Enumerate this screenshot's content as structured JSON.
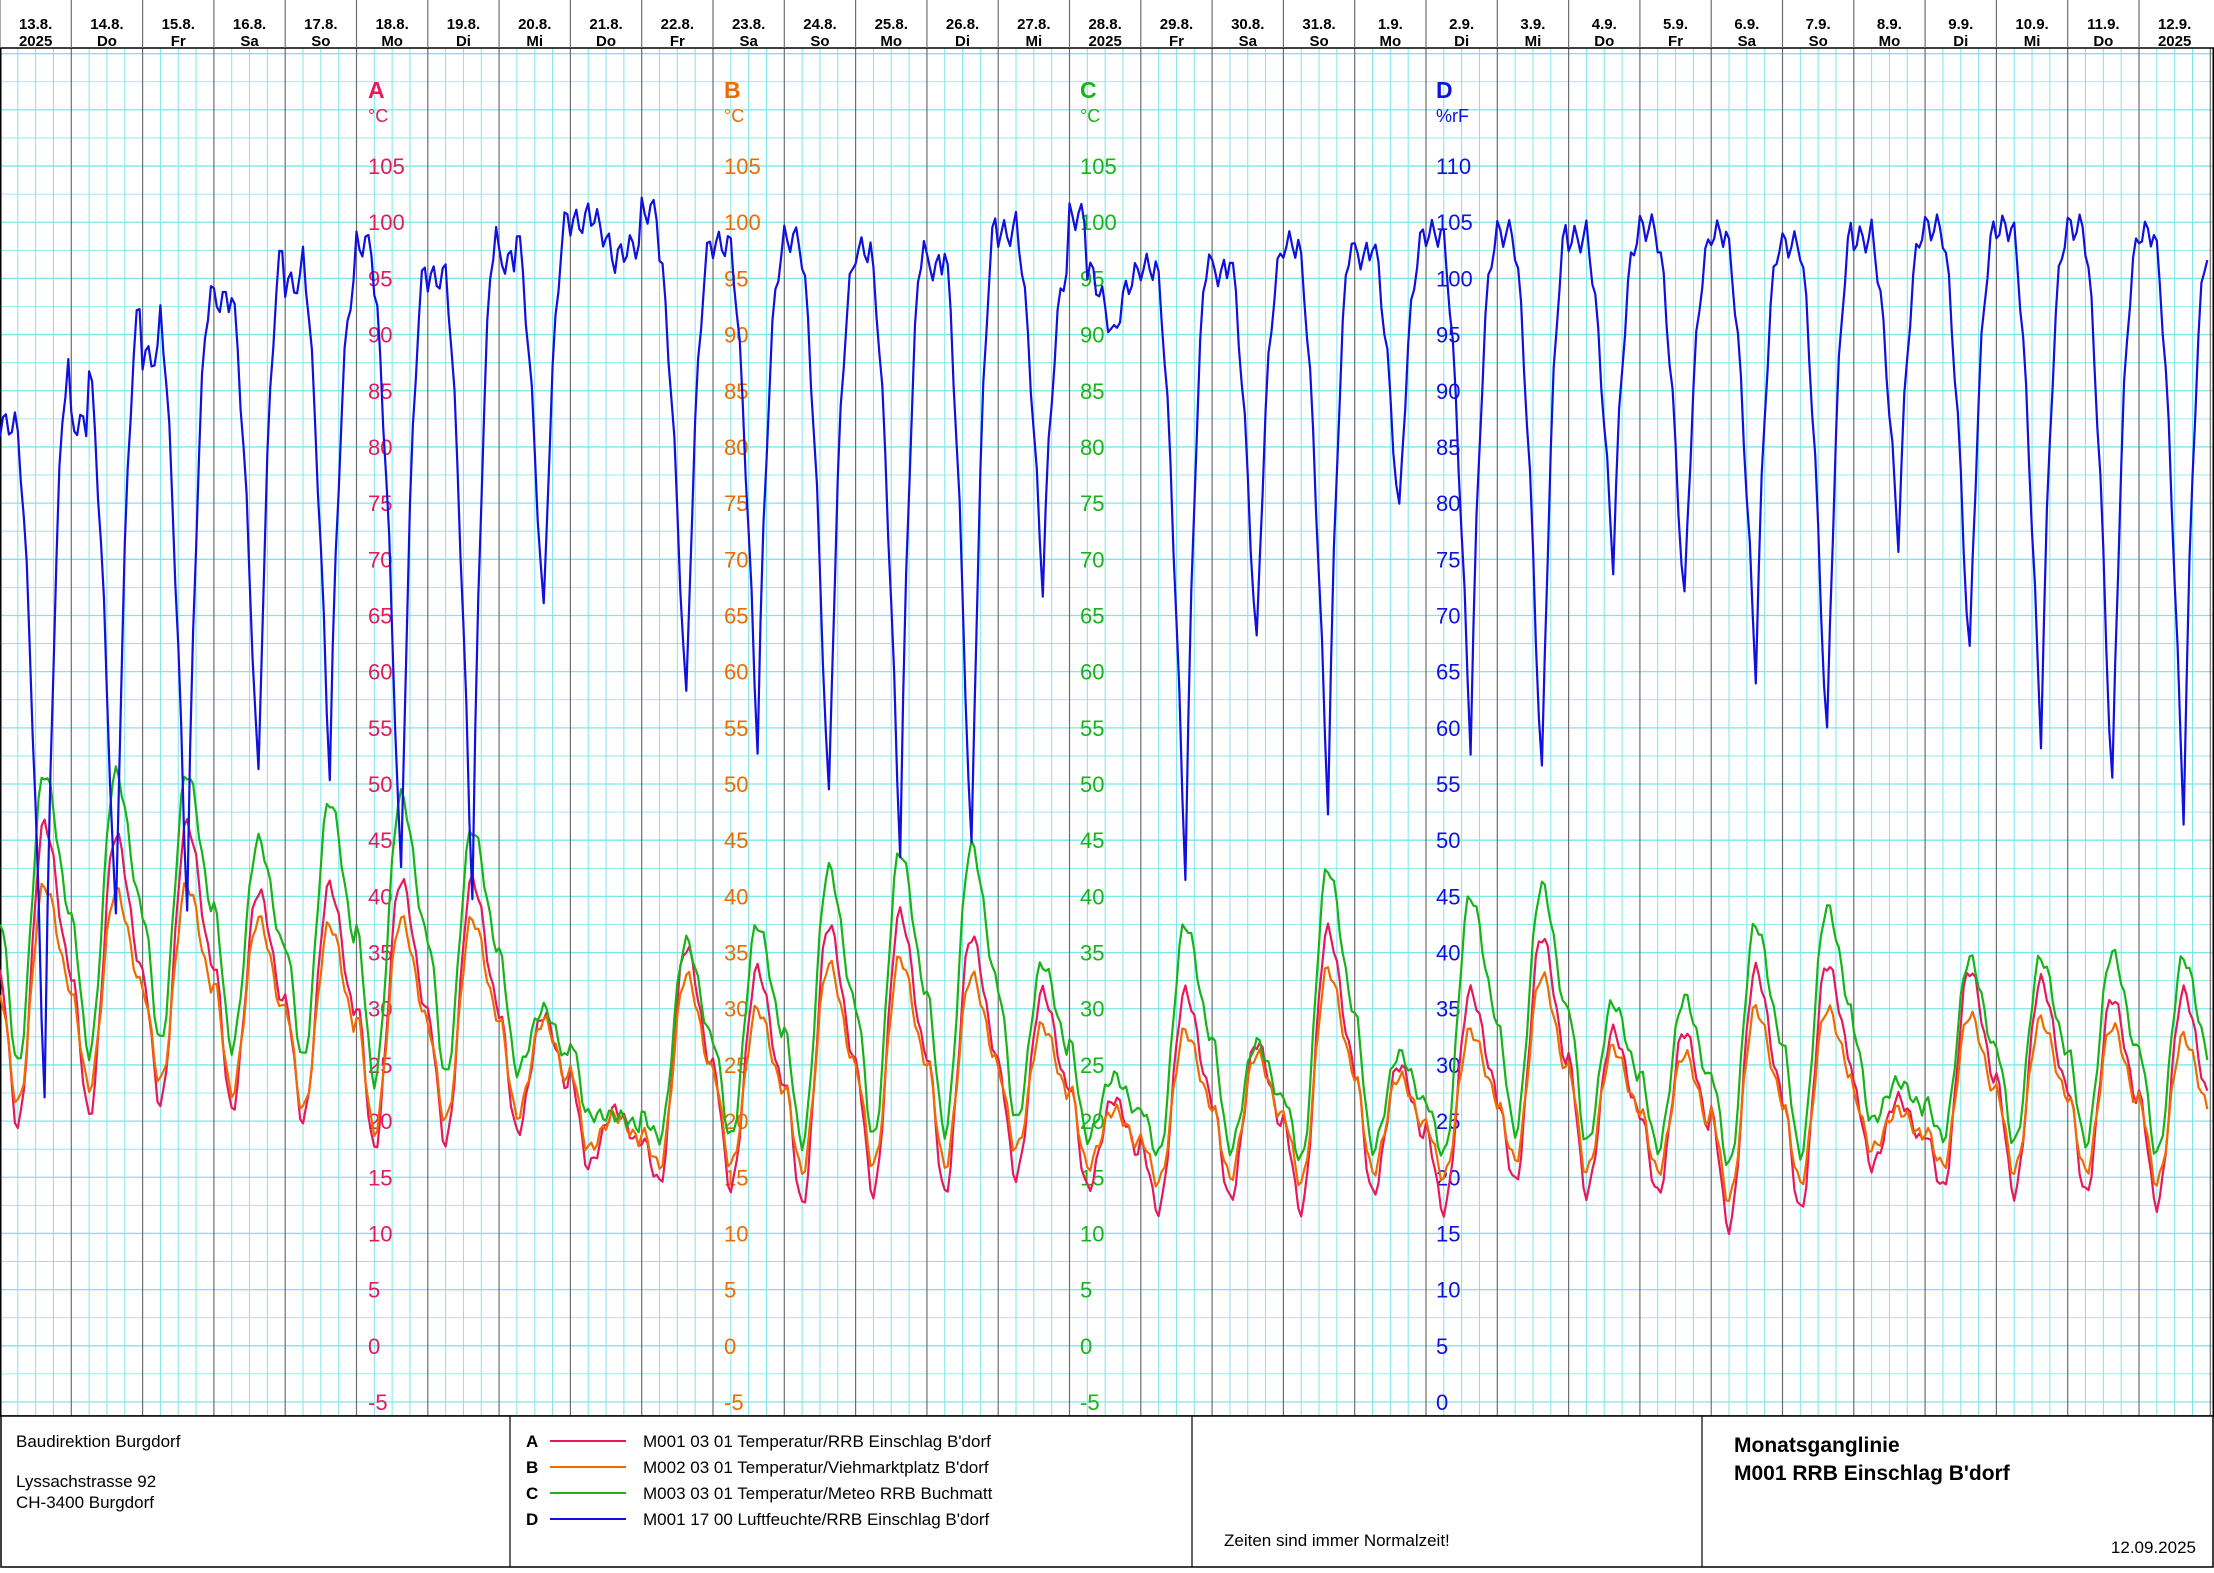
{
  "chart_data": {
    "type": "line",
    "days": [
      {
        "date": "13.8.",
        "sub": "2025"
      },
      {
        "date": "14.8.",
        "sub": "Do"
      },
      {
        "date": "15.8.",
        "sub": "Fr"
      },
      {
        "date": "16.8.",
        "sub": "Sa"
      },
      {
        "date": "17.8.",
        "sub": "So"
      },
      {
        "date": "18.8.",
        "sub": "Mo"
      },
      {
        "date": "19.8.",
        "sub": "Di"
      },
      {
        "date": "20.8.",
        "sub": "Mi"
      },
      {
        "date": "21.8.",
        "sub": "Do"
      },
      {
        "date": "22.8.",
        "sub": "Fr"
      },
      {
        "date": "23.8.",
        "sub": "Sa"
      },
      {
        "date": "24.8.",
        "sub": "So"
      },
      {
        "date": "25.8.",
        "sub": "Mo"
      },
      {
        "date": "26.8.",
        "sub": "Di"
      },
      {
        "date": "27.8.",
        "sub": "Mi"
      },
      {
        "date": "28.8.",
        "sub": "2025"
      },
      {
        "date": "29.8.",
        "sub": "Fr"
      },
      {
        "date": "30.8.",
        "sub": "Sa"
      },
      {
        "date": "31.8.",
        "sub": "So"
      },
      {
        "date": "1.9.",
        "sub": "Mo"
      },
      {
        "date": "2.9.",
        "sub": "Di"
      },
      {
        "date": "3.9.",
        "sub": "Mi"
      },
      {
        "date": "4.9.",
        "sub": "Do"
      },
      {
        "date": "5.9.",
        "sub": "Fr"
      },
      {
        "date": "6.9.",
        "sub": "Sa"
      },
      {
        "date": "7.9.",
        "sub": "So"
      },
      {
        "date": "8.9.",
        "sub": "Mo"
      },
      {
        "date": "9.9.",
        "sub": "Di"
      },
      {
        "date": "10.9.",
        "sub": "Mi"
      },
      {
        "date": "11.9.",
        "sub": "Do"
      },
      {
        "date": "12.9.",
        "sub": "2025"
      }
    ],
    "axes": [
      {
        "letter": "A",
        "unit": "°C",
        "color": "#e8185a",
        "ticks": [
          "105",
          "100",
          "95",
          "90",
          "85",
          "80",
          "75",
          "70",
          "65",
          "60",
          "55",
          "50",
          "45",
          "40",
          "35",
          "30",
          "25",
          "20",
          "15",
          "10",
          "5",
          "0",
          "-5"
        ]
      },
      {
        "letter": "B",
        "unit": "°C",
        "color": "#f06a00",
        "ticks": [
          "105",
          "100",
          "95",
          "90",
          "85",
          "80",
          "75",
          "70",
          "65",
          "60",
          "55",
          "50",
          "45",
          "40",
          "35",
          "30",
          "25",
          "20",
          "15",
          "10",
          "5",
          "0",
          "-5"
        ]
      },
      {
        "letter": "C",
        "unit": "°C",
        "color": "#18b318",
        "ticks": [
          "105",
          "100",
          "95",
          "90",
          "85",
          "80",
          "75",
          "70",
          "65",
          "60",
          "55",
          "50",
          "45",
          "40",
          "35",
          "30",
          "25",
          "20",
          "15",
          "10",
          "5",
          "0",
          "-5"
        ]
      },
      {
        "letter": "D",
        "unit": "%rF",
        "color": "#1010e0",
        "ticks": [
          "110",
          "105",
          "100",
          "95",
          "90",
          "85",
          "80",
          "75",
          "70",
          "65",
          "60",
          "55",
          "50",
          "45",
          "40",
          "35",
          "30",
          "25",
          "20",
          "15",
          "10",
          "5",
          "0"
        ]
      }
    ],
    "ylim_temperature": [
      -5,
      110
    ],
    "ylim_humidity": [
      0,
      115
    ],
    "series": [
      {
        "key": "A",
        "name": "M001 03 01  Temperatur/RRB Einschlag B'dorf",
        "color": "#e8185a",
        "axis": "temperature",
        "daily_min": [
          19.5,
          20.5,
          21.5,
          21.0,
          20.0,
          17.5,
          18.0,
          19.0,
          16.0,
          14.5,
          14.0,
          12.5,
          13.5,
          13.5,
          15.0,
          14.0,
          12.0,
          13.0,
          12.0,
          13.5,
          12.0,
          14.5,
          13.5,
          13.5,
          10.5,
          12.0,
          16.0,
          14.0,
          13.5,
          13.5,
          12.5
        ],
        "daily_max": [
          46.5,
          45.5,
          46.5,
          40.5,
          41.0,
          41.5,
          41.5,
          29.5,
          21.0,
          35.5,
          33.5,
          37.5,
          38.5,
          36.5,
          31.5,
          22.0,
          31.5,
          27.0,
          37.0,
          25.0,
          31.5,
          36.5,
          28.0,
          28.0,
          33.5,
          34.0,
          22.0,
          33.5,
          32.5,
          31.0,
          31.5
        ]
      },
      {
        "key": "B",
        "name": "M002 03 01  Temperatur/Viehmarktplatz B'dorf",
        "color": "#f06a00",
        "axis": "temperature",
        "daily_min": [
          21.5,
          23.0,
          23.5,
          22.5,
          21.0,
          19.0,
          20.0,
          20.5,
          17.5,
          16.0,
          16.0,
          15.5,
          16.0,
          16.0,
          17.5,
          16.0,
          14.5,
          15.0,
          14.5,
          15.5,
          15.0,
          16.5,
          15.5,
          15.5,
          13.0,
          14.5,
          17.5,
          16.0,
          15.5,
          15.5,
          14.5
        ],
        "daily_max": [
          41.0,
          40.5,
          41.0,
          38.0,
          37.5,
          38.0,
          38.0,
          29.0,
          20.5,
          33.0,
          30.0,
          34.0,
          34.5,
          33.0,
          28.5,
          21.0,
          28.0,
          26.0,
          33.5,
          24.0,
          28.0,
          33.0,
          26.5,
          26.0,
          30.0,
          30.0,
          21.0,
          29.5,
          29.0,
          28.5,
          27.5
        ]
      },
      {
        "key": "C",
        "name": "M003 03 01  Temperatur/Meteo RRB Buchmatt",
        "color": "#18b318",
        "axis": "temperature",
        "daily_min": [
          25.0,
          26.0,
          27.0,
          26.5,
          25.5,
          23.5,
          24.0,
          24.5,
          20.5,
          18.5,
          18.5,
          18.0,
          18.5,
          19.0,
          20.0,
          18.5,
          17.0,
          17.5,
          16.5,
          17.5,
          17.0,
          19.0,
          18.0,
          17.5,
          16.0,
          17.0,
          20.0,
          18.5,
          18.0,
          18.0,
          17.0
        ],
        "daily_max": [
          51.0,
          51.0,
          51.0,
          45.0,
          48.5,
          49.0,
          46.0,
          30.0,
          20.5,
          36.0,
          37.5,
          42.5,
          44.0,
          44.5,
          34.0,
          24.0,
          37.5,
          27.0,
          42.5,
          26.0,
          40.0,
          41.0,
          30.5,
          31.0,
          37.5,
          39.0,
          23.5,
          34.5,
          34.5,
          35.0,
          34.5
        ]
      },
      {
        "key": "D",
        "name": "M001 17 00  Luftfeuchte/RRB Einschlag B'dorf",
        "color": "#1010e0",
        "axis": "humidity",
        "daily_min": [
          26.0,
          41.0,
          43.0,
          54.0,
          55.0,
          45.0,
          44.0,
          69.0,
          101.5,
          61.0,
          57.5,
          52.0,
          48.0,
          47.0,
          72.0,
          94.5,
          46.0,
          66.0,
          52.0,
          78.0,
          57.5,
          54.0,
          74.0,
          70.0,
          64.0,
          57.5,
          76.0,
          65.0,
          58.0,
          53.0,
          51.0
        ],
        "daily_max": [
          87.0,
          93.0,
          98.0,
          99.5,
          103.0,
          100.0,
          101.5,
          105.0,
          106.0,
          103.0,
          103.5,
          102.5,
          101.0,
          104.0,
          105.5,
          101.0,
          100.5,
          103.0,
          102.0,
          104.0,
          104.0,
          103.5,
          104.5,
          104.0,
          103.0,
          103.5,
          104.5,
          104.5,
          104.5,
          104.0,
          103.0
        ]
      }
    ]
  },
  "footer": {
    "org_name": "Baudirektion Burgdorf",
    "street": "Lyssachstrasse 92",
    "city": "CH-3400 Burgdorf",
    "note": "Zeiten sind immer Normalzeit!",
    "title_line1": "Monatsganglinie",
    "title_line2": "M001 RRB Einschlag B'dorf",
    "date": "12.09.2025"
  }
}
